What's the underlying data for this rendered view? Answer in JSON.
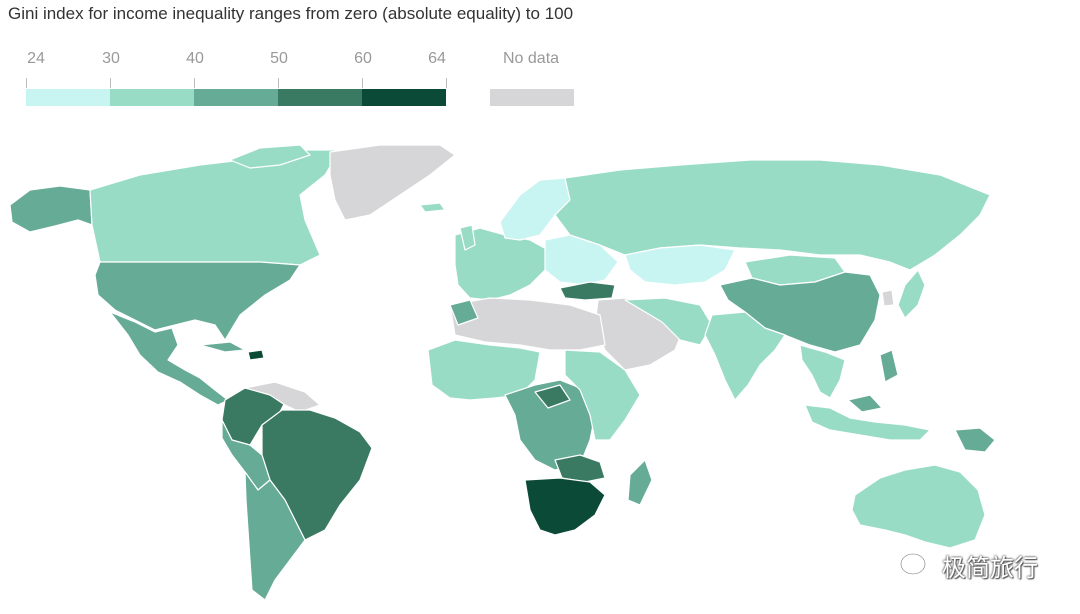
{
  "title": "Gini index for income inequality ranges from zero (absolute equality) to 100",
  "legend": {
    "ticks": [
      "24",
      "30",
      "40",
      "50",
      "60",
      "64"
    ],
    "bins": [
      {
        "from": 24,
        "to": 30,
        "color": "#c8f4f2"
      },
      {
        "from": 30,
        "to": 40,
        "color": "#99dcc5"
      },
      {
        "from": 40,
        "to": 50,
        "color": "#66ab96"
      },
      {
        "from": 50,
        "to": 60,
        "color": "#3a7a63"
      },
      {
        "from": 60,
        "to": 64,
        "color": "#0a4a36"
      }
    ],
    "no_data_label": "No data",
    "no_data_color": "#d6d6d8"
  },
  "map_type": "choropleth world map",
  "region_bins": {
    "north-america-north": "30-40",
    "alaska": "40-50",
    "greenland": "No data",
    "united-states": "40-50",
    "mexico-central-america": "40-50",
    "south-america-north": "50-60",
    "brazil": "50-60",
    "south-america-west": "40-50",
    "south-america-south": "40-50",
    "europe-west": "30-40",
    "scandinavia": "24-30",
    "eastern-europe": "24-30",
    "russia": "30-40",
    "central-asia": "24-30",
    "mongolia": "30-40",
    "china": "40-50",
    "middle-east": "No data",
    "north-africa": "No data",
    "west-africa": "30-40",
    "central-africa": "40-50",
    "east-africa": "30-40",
    "southern-africa": "60-64",
    "madagascar": "40-50",
    "india": "30-40",
    "south-east-asia": "30-40",
    "indonesia": "30-40",
    "papua-new-guinea": "40-50",
    "japan": "30-40",
    "australia": "30-40"
  },
  "watermark": {
    "text": "极简旅行",
    "icon": "wechat-icon"
  }
}
